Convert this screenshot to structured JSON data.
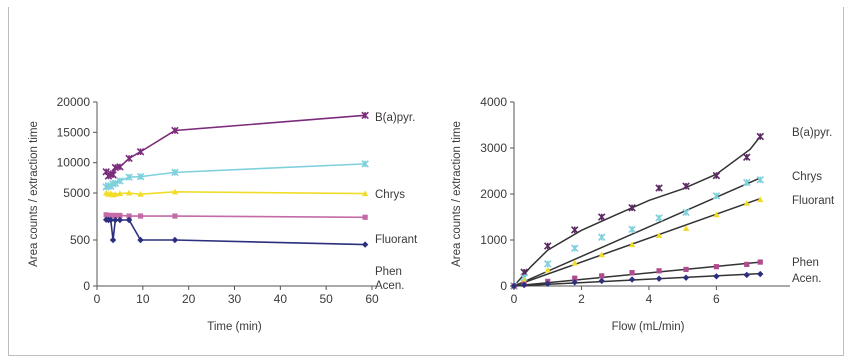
{
  "chart_data": [
    {
      "type": "line",
      "xlabel": "Time (min)",
      "ylabel": "Area counts / extraction time",
      "xlim": [
        0,
        60
      ],
      "ylim": [
        0,
        20000
      ],
      "x_ticks": [
        "0",
        "10",
        "20",
        "30",
        "40",
        "50",
        "60"
      ],
      "y_ticks": [
        "0",
        "500",
        "5000",
        "10000",
        "15000",
        "20000"
      ],
      "series": [
        {
          "name": "B(a)pyr.",
          "color": "#7b2c7b",
          "marker": "x",
          "x": [
            2,
            2.5,
            3,
            3.5,
            4,
            5,
            7,
            9.5,
            17,
            58.5
          ],
          "y": [
            8500,
            7800,
            8200,
            8000,
            9200,
            9300,
            10700,
            11800,
            15300,
            17800
          ]
        },
        {
          "name": "Chrys",
          "color": "#7fd0dd",
          "marker": "x",
          "x": [
            2,
            2.5,
            3,
            3.5,
            4,
            5,
            7,
            9.5,
            17,
            58.5
          ],
          "y": [
            6000,
            6200,
            6100,
            6500,
            6600,
            7000,
            7600,
            7700,
            8400,
            9800
          ]
        },
        {
          "name": "Fluorant",
          "color": "#f2dc2a",
          "marker": "triangle",
          "x": [
            2,
            2.5,
            3,
            3.5,
            4,
            5,
            7,
            9.5,
            17,
            58.5
          ],
          "y": [
            5000,
            4800,
            4900,
            4700,
            4800,
            4900,
            5000,
            4800,
            5200,
            4900
          ]
        },
        {
          "name": "Phen",
          "color": "#c46aa6",
          "marker": "square",
          "x": [
            2,
            2.5,
            3,
            3.5,
            4,
            5,
            7,
            9.5,
            17,
            58.5
          ],
          "y": [
            1400,
            1300,
            1300,
            1300,
            1300,
            1300,
            1200,
            1200,
            1200,
            1000
          ]
        },
        {
          "name": "Acen.",
          "color": "#2b2f7e",
          "marker": "diamond",
          "x": [
            2,
            2.5,
            3,
            3.5,
            4,
            5,
            7,
            9.5,
            17,
            58.5
          ],
          "y": [
            600,
            550,
            550,
            500,
            550,
            550,
            550,
            500,
            500,
            450
          ]
        }
      ]
    },
    {
      "type": "scatter",
      "xlabel": "Flow (mL/min)",
      "ylabel": "Area counts / extraction time",
      "xlim": [
        0,
        7.5
      ],
      "ylim": [
        0,
        4000
      ],
      "x_ticks": [
        "0",
        "2",
        "4",
        "6"
      ],
      "y_ticks": [
        "0",
        "1000",
        "2000",
        "3000",
        "4000"
      ],
      "series": [
        {
          "name": "B(a)pyr.",
          "color": "#5c2a63",
          "marker": "x",
          "x": [
            0,
            0.3,
            1,
            1.8,
            2.6,
            3.5,
            4.3,
            5.1,
            6,
            6.9,
            7.3
          ],
          "y": [
            0,
            300,
            870,
            1220,
            1500,
            1700,
            2130,
            2170,
            2400,
            2800,
            3250
          ],
          "fit": [
            [
              0,
              0
            ],
            [
              0.5,
              420
            ],
            [
              1,
              780
            ],
            [
              2,
              1210
            ],
            [
              3,
              1540
            ],
            [
              4,
              1860
            ],
            [
              5,
              2110
            ],
            [
              6,
              2430
            ],
            [
              7,
              2970
            ],
            [
              7.3,
              3250
            ]
          ]
        },
        {
          "name": "Chrys",
          "color": "#7fd0dd",
          "marker": "x",
          "x": [
            0,
            0.3,
            1,
            1.8,
            2.6,
            3.5,
            4.3,
            5.1,
            6,
            6.9,
            7.3
          ],
          "y": [
            0,
            180,
            480,
            820,
            1060,
            1230,
            1480,
            1600,
            1960,
            2250,
            2310
          ],
          "fit": [
            [
              0,
              0
            ],
            [
              7.3,
              2350
            ]
          ]
        },
        {
          "name": "Fluorant",
          "color": "#f2dc2a",
          "marker": "triangle",
          "x": [
            0,
            0.3,
            1,
            1.8,
            2.6,
            3.5,
            4.3,
            5.1,
            6,
            6.9,
            7.3
          ],
          "y": [
            0,
            120,
            350,
            500,
            680,
            900,
            1100,
            1250,
            1550,
            1800,
            1880
          ],
          "fit": [
            [
              0,
              0
            ],
            [
              7.3,
              1900
            ]
          ]
        },
        {
          "name": "Phen",
          "color": "#b04b8f",
          "marker": "square",
          "x": [
            0,
            0.3,
            1,
            1.8,
            2.6,
            3.5,
            4.3,
            5.1,
            6,
            6.9,
            7.3
          ],
          "y": [
            0,
            40,
            100,
            170,
            220,
            290,
            330,
            360,
            420,
            470,
            520
          ],
          "fit": [
            [
              0,
              0
            ],
            [
              7.3,
              520
            ]
          ]
        },
        {
          "name": "Acen.",
          "color": "#2b2f7e",
          "marker": "diamond",
          "x": [
            0,
            0.3,
            1,
            1.8,
            2.6,
            3.5,
            4.3,
            5.1,
            6,
            6.9,
            7.3
          ],
          "y": [
            0,
            20,
            50,
            80,
            110,
            140,
            160,
            180,
            210,
            240,
            260
          ],
          "fit": [
            [
              0,
              0
            ],
            [
              7.3,
              270
            ]
          ]
        }
      ]
    }
  ]
}
